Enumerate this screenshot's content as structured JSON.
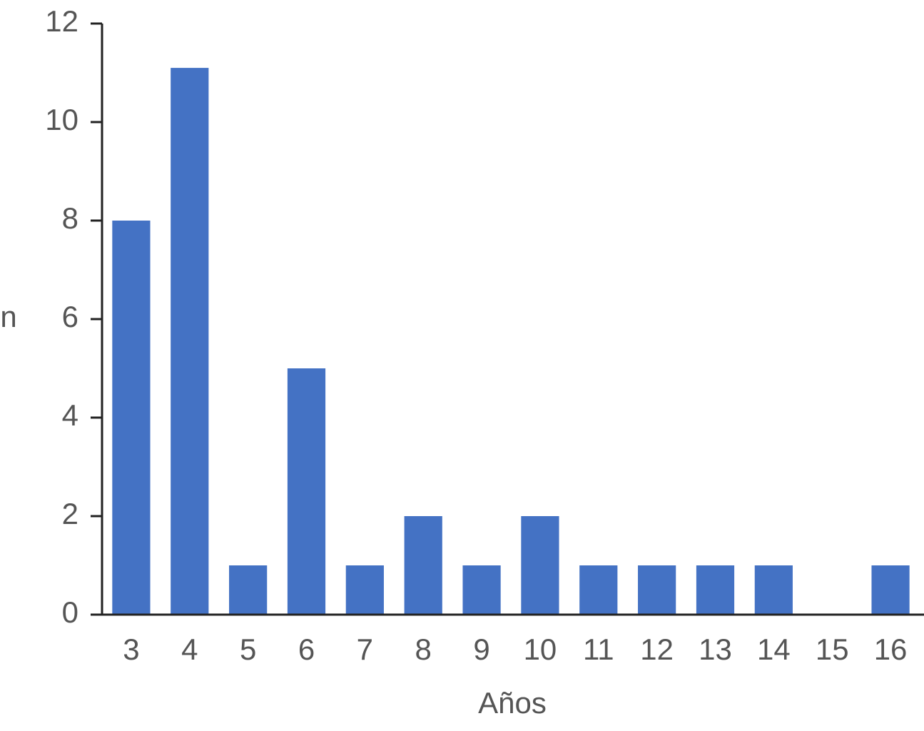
{
  "chart_data": {
    "type": "bar",
    "x_label": "Años",
    "y_label": "n",
    "categories": [
      "3",
      "4",
      "5",
      "6",
      "7",
      "8",
      "9",
      "10",
      "11",
      "12",
      "13",
      "14",
      "15",
      "16"
    ],
    "values": [
      8,
      11.1,
      1,
      5,
      1,
      2,
      1,
      2,
      1,
      1,
      1,
      1,
      0,
      1
    ],
    "color": "#4472c4",
    "ylim": [
      0,
      12
    ],
    "yticks": [
      0,
      2,
      4,
      6,
      8,
      10,
      12
    ],
    "grid": false
  }
}
